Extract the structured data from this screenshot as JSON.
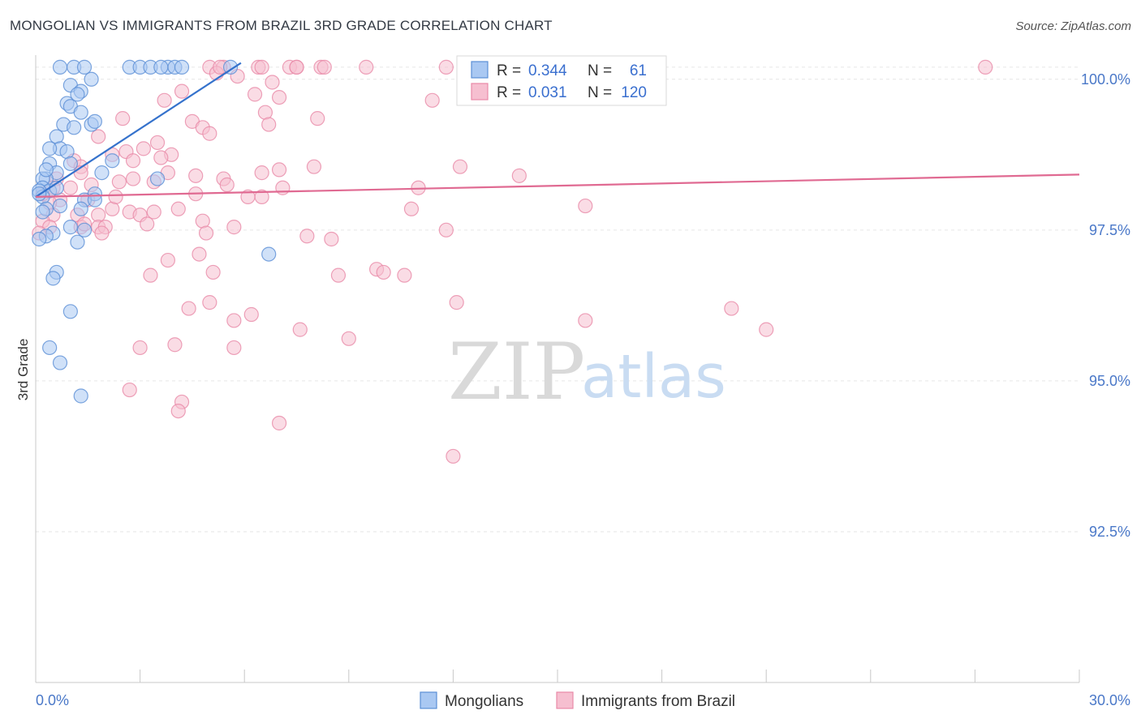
{
  "title": "MONGOLIAN VS IMMIGRANTS FROM BRAZIL 3RD GRADE CORRELATION CHART",
  "source": "Source: ZipAtlas.com",
  "watermark": {
    "zip": "ZIP",
    "atlas": "atlas"
  },
  "colors": {
    "mongolians_fill": "#a9c8f2",
    "mongolians_stroke": "#5b8fd6",
    "mongolians_line": "#3572cc",
    "brazil_fill": "#f6bfd0",
    "brazil_stroke": "#e88aa8",
    "brazil_line": "#e06a92",
    "grid": "#e6e6e6",
    "tick_label": "#4a78c8"
  },
  "legend_box": {
    "rows": [
      {
        "r_label": "R =",
        "r_value": "0.344",
        "n_label": "N =",
        "n_value": "61"
      },
      {
        "r_label": "R =",
        "r_value": "0.031",
        "n_label": "N =",
        "n_value": "120"
      }
    ]
  },
  "chart_data": {
    "type": "scatter",
    "title": "MONGOLIAN VS IMMIGRANTS FROM BRAZIL 3RD GRADE CORRELATION CHART",
    "xlabel": "",
    "ylabel": "3rd Grade",
    "xlim": [
      0,
      30
    ],
    "ylim": [
      90.0,
      100.4
    ],
    "x_tick_labels": [
      "0.0%",
      "30.0%"
    ],
    "y_ticks": [
      100.0,
      97.5,
      95.0,
      92.5
    ],
    "y_tick_labels": [
      "100.0%",
      "97.5%",
      "95.0%",
      "92.5%"
    ],
    "grid": true,
    "legend_position": "bottom-center",
    "series": [
      {
        "name": "Mongolians",
        "r": 0.344,
        "n": 61,
        "trend": {
          "x": [
            0.0,
            5.9
          ],
          "y": [
            98.05,
            100.27
          ]
        },
        "points": [
          [
            0.7,
            100.2
          ],
          [
            1.1,
            100.2
          ],
          [
            1.4,
            100.2
          ],
          [
            2.7,
            100.2
          ],
          [
            3.0,
            100.2
          ],
          [
            3.3,
            100.2
          ],
          [
            3.8,
            100.2
          ],
          [
            4.0,
            100.2
          ],
          [
            5.6,
            100.2
          ],
          [
            3.6,
            100.2
          ],
          [
            4.2,
            100.2
          ],
          [
            1.6,
            100.0
          ],
          [
            1.0,
            99.9
          ],
          [
            1.3,
            99.8
          ],
          [
            1.2,
            99.75
          ],
          [
            0.9,
            99.6
          ],
          [
            1.0,
            99.55
          ],
          [
            1.3,
            99.45
          ],
          [
            1.6,
            99.25
          ],
          [
            1.7,
            99.3
          ],
          [
            0.8,
            99.25
          ],
          [
            1.1,
            99.2
          ],
          [
            0.6,
            99.05
          ],
          [
            0.7,
            98.85
          ],
          [
            0.4,
            98.85
          ],
          [
            0.9,
            98.8
          ],
          [
            0.4,
            98.6
          ],
          [
            1.9,
            98.45
          ],
          [
            0.6,
            98.45
          ],
          [
            0.3,
            98.35
          ],
          [
            3.5,
            98.35
          ],
          [
            0.2,
            98.35
          ],
          [
            0.2,
            98.2
          ],
          [
            0.4,
            98.15
          ],
          [
            0.1,
            98.15
          ],
          [
            1.7,
            98.1
          ],
          [
            0.2,
            98.05
          ],
          [
            1.4,
            98.0
          ],
          [
            0.7,
            97.9
          ],
          [
            0.3,
            97.85
          ],
          [
            2.2,
            98.65
          ],
          [
            0.2,
            97.8
          ],
          [
            1.3,
            97.85
          ],
          [
            1.0,
            97.55
          ],
          [
            1.4,
            97.5
          ],
          [
            0.5,
            97.45
          ],
          [
            0.3,
            97.4
          ],
          [
            0.1,
            97.35
          ],
          [
            1.2,
            97.3
          ],
          [
            0.6,
            96.8
          ],
          [
            0.5,
            96.7
          ],
          [
            6.7,
            97.1
          ],
          [
            1.0,
            96.15
          ],
          [
            0.4,
            95.55
          ],
          [
            0.7,
            95.3
          ],
          [
            1.3,
            94.75
          ],
          [
            0.6,
            98.2
          ],
          [
            0.1,
            98.1
          ],
          [
            1.7,
            98.0
          ],
          [
            0.3,
            98.5
          ],
          [
            1.0,
            98.6
          ]
        ]
      },
      {
        "name": "Immigrants from Brazil",
        "r": 0.031,
        "n": 120,
        "trend": {
          "x": [
            0.0,
            30.0
          ],
          "y": [
            98.05,
            98.42
          ]
        },
        "points": [
          [
            5.0,
            100.2
          ],
          [
            5.4,
            100.2
          ],
          [
            6.4,
            100.2
          ],
          [
            7.3,
            100.2
          ],
          [
            8.2,
            100.2
          ],
          [
            9.5,
            100.2
          ],
          [
            11.8,
            100.2
          ],
          [
            12.5,
            100.2
          ],
          [
            13.5,
            100.2
          ],
          [
            16.2,
            100.2
          ],
          [
            27.3,
            100.2
          ],
          [
            7.5,
            100.2
          ],
          [
            8.3,
            100.2
          ],
          [
            5.8,
            100.05
          ],
          [
            5.2,
            100.1
          ],
          [
            6.8,
            99.95
          ],
          [
            4.2,
            99.8
          ],
          [
            6.3,
            99.75
          ],
          [
            7.0,
            99.7
          ],
          [
            3.7,
            99.65
          ],
          [
            11.4,
            99.65
          ],
          [
            6.6,
            99.45
          ],
          [
            8.1,
            99.35
          ],
          [
            2.5,
            99.35
          ],
          [
            4.5,
            99.3
          ],
          [
            6.7,
            99.25
          ],
          [
            4.8,
            99.2
          ],
          [
            5.0,
            99.1
          ],
          [
            1.8,
            99.05
          ],
          [
            3.5,
            98.95
          ],
          [
            3.1,
            98.85
          ],
          [
            2.6,
            98.8
          ],
          [
            3.9,
            98.75
          ],
          [
            2.2,
            98.75
          ],
          [
            3.6,
            98.7
          ],
          [
            2.8,
            98.65
          ],
          [
            1.1,
            98.65
          ],
          [
            1.3,
            98.55
          ],
          [
            8.0,
            98.55
          ],
          [
            12.2,
            98.55
          ],
          [
            7.0,
            98.5
          ],
          [
            6.5,
            98.45
          ],
          [
            3.8,
            98.45
          ],
          [
            1.3,
            98.45
          ],
          [
            4.6,
            98.4
          ],
          [
            5.4,
            98.35
          ],
          [
            2.8,
            98.35
          ],
          [
            3.4,
            98.3
          ],
          [
            0.6,
            98.35
          ],
          [
            0.5,
            98.2
          ],
          [
            1.6,
            98.25
          ],
          [
            2.4,
            98.3
          ],
          [
            1.0,
            98.2
          ],
          [
            13.9,
            98.4
          ],
          [
            11.0,
            98.2
          ],
          [
            7.1,
            98.2
          ],
          [
            5.5,
            98.25
          ],
          [
            4.6,
            98.1
          ],
          [
            6.5,
            98.05
          ],
          [
            6.1,
            98.05
          ],
          [
            0.7,
            98.0
          ],
          [
            1.5,
            98.0
          ],
          [
            0.4,
            97.95
          ],
          [
            2.2,
            97.85
          ],
          [
            4.1,
            97.85
          ],
          [
            15.8,
            97.9
          ],
          [
            2.7,
            97.8
          ],
          [
            3.4,
            97.8
          ],
          [
            1.8,
            97.75
          ],
          [
            0.5,
            97.75
          ],
          [
            1.2,
            97.75
          ],
          [
            3.0,
            97.75
          ],
          [
            10.8,
            97.85
          ],
          [
            4.8,
            97.65
          ],
          [
            0.2,
            97.65
          ],
          [
            1.8,
            97.55
          ],
          [
            3.2,
            97.6
          ],
          [
            1.3,
            97.55
          ],
          [
            2.0,
            97.55
          ],
          [
            5.7,
            97.55
          ],
          [
            0.4,
            97.55
          ],
          [
            11.8,
            97.5
          ],
          [
            4.9,
            97.45
          ],
          [
            7.8,
            97.4
          ],
          [
            0.1,
            97.45
          ],
          [
            8.5,
            97.35
          ],
          [
            1.9,
            97.45
          ],
          [
            4.7,
            97.1
          ],
          [
            3.8,
            97.0
          ],
          [
            5.1,
            96.8
          ],
          [
            3.3,
            96.75
          ],
          [
            8.7,
            96.75
          ],
          [
            9.8,
            96.85
          ],
          [
            10.0,
            96.8
          ],
          [
            10.6,
            96.75
          ],
          [
            12.1,
            96.3
          ],
          [
            15.8,
            96.0
          ],
          [
            5.0,
            96.3
          ],
          [
            4.4,
            96.2
          ],
          [
            6.2,
            96.1
          ],
          [
            5.7,
            96.0
          ],
          [
            7.6,
            95.85
          ],
          [
            9.0,
            95.7
          ],
          [
            4.0,
            95.6
          ],
          [
            20.0,
            96.2
          ],
          [
            21.0,
            95.85
          ],
          [
            3.0,
            95.55
          ],
          [
            5.7,
            95.55
          ],
          [
            2.7,
            94.85
          ],
          [
            4.2,
            94.65
          ],
          [
            4.1,
            94.5
          ],
          [
            7.0,
            94.3
          ],
          [
            12.0,
            93.75
          ],
          [
            1.4,
            97.6
          ],
          [
            2.3,
            98.05
          ],
          [
            0.2,
            98.1
          ],
          [
            5.3,
            100.2
          ],
          [
            6.5,
            100.2
          ],
          [
            7.5,
            100.2
          ],
          [
            13.0,
            100.2
          ]
        ]
      }
    ]
  },
  "legend": {
    "mongolians": "Mongolians",
    "brazil": "Immigrants from Brazil"
  }
}
